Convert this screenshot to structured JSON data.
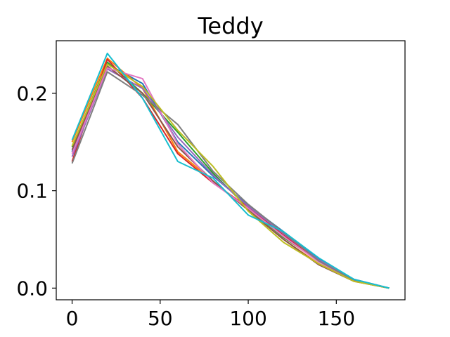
{
  "chart_data": {
    "type": "line",
    "title": "Teddy",
    "xlabel": "",
    "ylabel": "",
    "xlim": [
      -9,
      189
    ],
    "ylim": [
      -0.012,
      0.254
    ],
    "x": [
      0,
      20,
      40,
      60,
      80,
      100,
      120,
      140,
      160,
      180
    ],
    "xticks": [
      {
        "value": 0,
        "label": "0"
      },
      {
        "value": 50,
        "label": "50"
      },
      {
        "value": 100,
        "label": "100"
      },
      {
        "value": 150,
        "label": "150"
      }
    ],
    "yticks": [
      {
        "value": 0.0,
        "label": "0.0"
      },
      {
        "value": 0.1,
        "label": "0.1"
      },
      {
        "value": 0.2,
        "label": "0.2"
      }
    ],
    "grid": false,
    "legend": "none",
    "series": [
      {
        "color": "#1f77b4",
        "values": [
          0.14,
          0.23,
          0.21,
          0.15,
          0.115,
          0.085,
          0.058,
          0.03,
          0.009,
          0.0
        ]
      },
      {
        "color": "#ff7f0e",
        "values": [
          0.15,
          0.236,
          0.205,
          0.14,
          0.11,
          0.08,
          0.05,
          0.025,
          0.007,
          0.0
        ]
      },
      {
        "color": "#2ca02c",
        "values": [
          0.145,
          0.232,
          0.2,
          0.16,
          0.118,
          0.082,
          0.052,
          0.028,
          0.008,
          0.0
        ]
      },
      {
        "color": "#d62728",
        "values": [
          0.13,
          0.235,
          0.195,
          0.138,
          0.108,
          0.083,
          0.055,
          0.027,
          0.008,
          0.0
        ]
      },
      {
        "color": "#9467bd",
        "values": [
          0.135,
          0.225,
          0.205,
          0.155,
          0.116,
          0.084,
          0.056,
          0.029,
          0.009,
          0.0
        ]
      },
      {
        "color": "#8c564b",
        "values": [
          0.142,
          0.228,
          0.2,
          0.145,
          0.11,
          0.08,
          0.05,
          0.024,
          0.007,
          0.0
        ]
      },
      {
        "color": "#e377c2",
        "values": [
          0.138,
          0.226,
          0.215,
          0.148,
          0.108,
          0.082,
          0.053,
          0.027,
          0.008,
          0.0
        ]
      },
      {
        "color": "#7f7f7f",
        "values": [
          0.128,
          0.222,
          0.198,
          0.168,
          0.12,
          0.086,
          0.057,
          0.028,
          0.008,
          0.0
        ]
      },
      {
        "color": "#bcbd22",
        "values": [
          0.146,
          0.23,
          0.207,
          0.162,
          0.125,
          0.079,
          0.047,
          0.025,
          0.007,
          0.0
        ]
      },
      {
        "color": "#17becf",
        "values": [
          0.152,
          0.241,
          0.195,
          0.13,
          0.113,
          0.075,
          0.058,
          0.031,
          0.009,
          0.0
        ]
      }
    ]
  }
}
